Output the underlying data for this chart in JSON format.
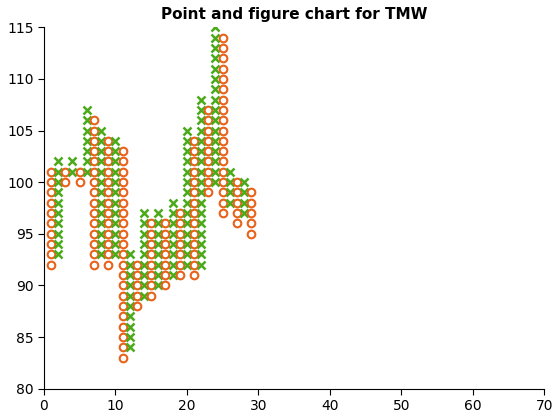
{
  "title": "Point and figure chart for TMW",
  "xlim": [
    0,
    70
  ],
  "ylim": [
    80,
    115
  ],
  "title_fontsize": 11,
  "o_color": "#e8621a",
  "x_color": "#4aaa1a",
  "columns": [
    {
      "type": "O",
      "col": 1,
      "values": [
        101,
        100,
        99,
        98,
        97,
        96,
        95,
        94,
        93,
        92
      ]
    },
    {
      "type": "X",
      "col": 2,
      "values": [
        93,
        94,
        95,
        96,
        97,
        98,
        99,
        100,
        101,
        102
      ]
    },
    {
      "type": "O",
      "col": 3,
      "values": [
        101,
        100
      ]
    },
    {
      "type": "X",
      "col": 4,
      "values": [
        101,
        102
      ]
    },
    {
      "type": "O",
      "col": 5,
      "values": [
        101,
        100
      ]
    },
    {
      "type": "X",
      "col": 6,
      "values": [
        101,
        102,
        103,
        104,
        105,
        106,
        107
      ]
    },
    {
      "type": "O",
      "col": 7,
      "values": [
        106,
        105,
        104,
        103,
        102,
        101,
        100,
        99,
        98,
        97,
        96,
        95,
        94,
        93,
        92
      ]
    },
    {
      "type": "X",
      "col": 8,
      "values": [
        93,
        94,
        95,
        96,
        97,
        98,
        99,
        100,
        101,
        102,
        103,
        104,
        105
      ]
    },
    {
      "type": "O",
      "col": 9,
      "values": [
        104,
        103,
        102,
        101,
        100,
        99,
        98,
        97,
        96,
        95,
        94,
        93,
        92
      ]
    },
    {
      "type": "X",
      "col": 10,
      "values": [
        93,
        94,
        95,
        96,
        97,
        98,
        99,
        100,
        101,
        102,
        103,
        104
      ]
    },
    {
      "type": "O",
      "col": 11,
      "values": [
        103,
        102,
        101,
        100,
        99,
        98,
        97,
        96,
        95,
        94,
        93,
        92,
        91,
        90,
        89,
        88,
        87,
        86,
        85,
        84,
        83
      ]
    },
    {
      "type": "X",
      "col": 12,
      "values": [
        84,
        85,
        86,
        87,
        88,
        89,
        90,
        91,
        92,
        93
      ]
    },
    {
      "type": "O",
      "col": 13,
      "values": [
        92,
        91,
        90,
        89,
        88
      ]
    },
    {
      "type": "X",
      "col": 14,
      "values": [
        89,
        90,
        91,
        92,
        93,
        94,
        95,
        96,
        97
      ]
    },
    {
      "type": "O",
      "col": 15,
      "values": [
        96,
        95,
        94,
        93,
        92,
        91,
        90,
        89
      ]
    },
    {
      "type": "X",
      "col": 16,
      "values": [
        90,
        91,
        92,
        93,
        94,
        95,
        96,
        97
      ]
    },
    {
      "type": "O",
      "col": 17,
      "values": [
        96,
        95,
        94,
        93,
        92,
        91,
        90
      ]
    },
    {
      "type": "X",
      "col": 18,
      "values": [
        91,
        92,
        93,
        94,
        95,
        96,
        97,
        98
      ]
    },
    {
      "type": "O",
      "col": 19,
      "values": [
        97,
        96,
        95,
        94,
        93,
        92,
        91
      ]
    },
    {
      "type": "X",
      "col": 20,
      "values": [
        92,
        93,
        94,
        95,
        96,
        97,
        98,
        99,
        100,
        101,
        102,
        103,
        104,
        105
      ]
    },
    {
      "type": "O",
      "col": 21,
      "values": [
        104,
        103,
        102,
        101,
        100,
        99,
        98,
        97,
        96,
        95,
        94,
        93,
        92,
        91
      ]
    },
    {
      "type": "X",
      "col": 22,
      "values": [
        92,
        93,
        94,
        95,
        96,
        97,
        98,
        99,
        100,
        101,
        102,
        103,
        104,
        105,
        106,
        107,
        108
      ]
    },
    {
      "type": "O",
      "col": 23,
      "values": [
        107,
        106,
        105,
        104,
        103,
        102,
        101,
        100,
        99
      ]
    },
    {
      "type": "X",
      "col": 24,
      "values": [
        100,
        101,
        102,
        103,
        104,
        105,
        106,
        107,
        108,
        109,
        110,
        111,
        112,
        113,
        114,
        115
      ]
    },
    {
      "type": "O",
      "col": 25,
      "values": [
        114,
        113,
        112,
        111,
        110,
        109,
        108,
        107,
        106,
        105,
        104,
        103,
        102,
        101,
        100,
        99,
        98,
        97
      ]
    },
    {
      "type": "X",
      "col": 26,
      "values": [
        98,
        99,
        100,
        101
      ]
    },
    {
      "type": "O",
      "col": 27,
      "values": [
        100,
        99,
        98,
        97,
        96
      ]
    },
    {
      "type": "X",
      "col": 28,
      "values": [
        97,
        98,
        99,
        100
      ]
    },
    {
      "type": "O",
      "col": 29,
      "values": [
        99,
        98,
        97,
        96,
        95
      ]
    }
  ]
}
